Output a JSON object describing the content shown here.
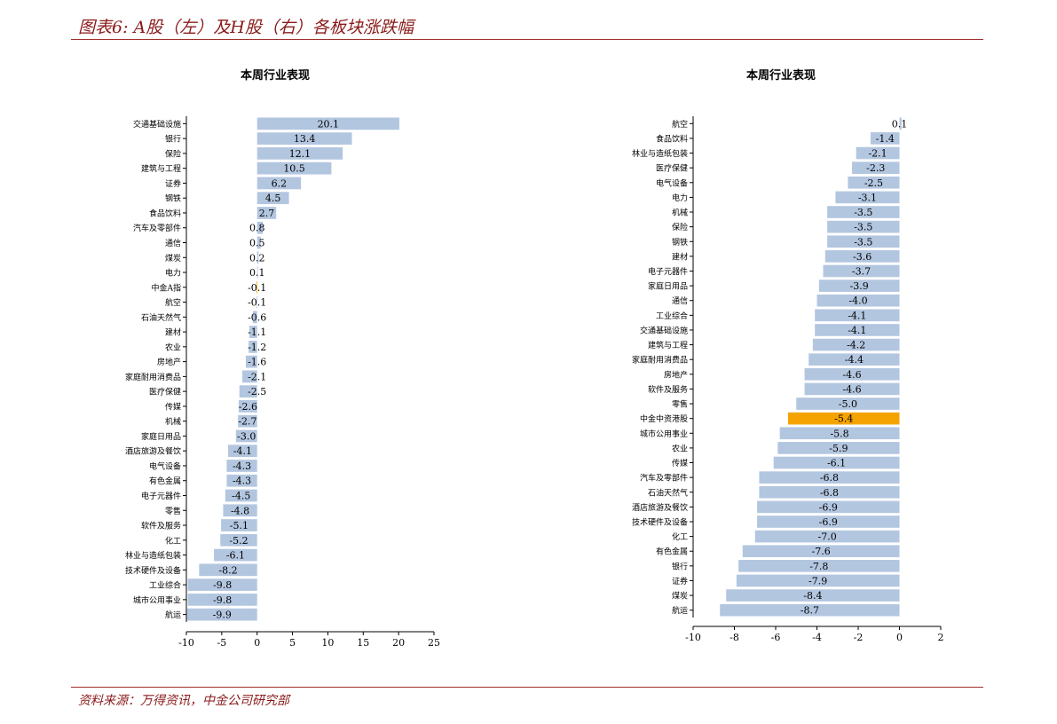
{
  "page": {
    "figure_title": "图表6: A股（左）及H股（右）各板块涨跌幅",
    "source": "资料来源：万得资讯，中金公司研究部"
  },
  "colors": {
    "bar": "#b3c6e0",
    "highlight": "#f5a300",
    "rule": "#a0302c",
    "title_text": "#8b1a1a"
  },
  "chart_data": [
    {
      "type": "bar",
      "orientation": "horizontal",
      "title": "本周行业表现",
      "xlim": [
        -10,
        25
      ],
      "xticks": [
        -10,
        -5,
        0,
        5,
        10,
        15,
        20,
        25
      ],
      "categories": [
        "交通基础设施",
        "银行",
        "保险",
        "建筑与工程",
        "证券",
        "钢铁",
        "食品饮料",
        "汽车及零部件",
        "通信",
        "煤炭",
        "电力",
        "中金A指",
        "航空",
        "石油天然气",
        "建材",
        "农业",
        "房地产",
        "家庭耐用消费品",
        "医疗保健",
        "传媒",
        "机械",
        "家庭日用品",
        "酒店旅游及餐饮",
        "电气设备",
        "有色金属",
        "电子元器件",
        "零售",
        "软件及服务",
        "化工",
        "林业与造纸包装",
        "技术硬件及设备",
        "工业综合",
        "城市公用事业",
        "航运"
      ],
      "values": [
        20.1,
        13.4,
        12.1,
        10.5,
        6.2,
        4.5,
        2.7,
        0.8,
        0.5,
        0.2,
        0.1,
        -0.1,
        -0.1,
        -0.6,
        -1.1,
        -1.2,
        -1.6,
        -2.1,
        -2.5,
        -2.6,
        -2.7,
        -3.0,
        -4.1,
        -4.3,
        -4.3,
        -4.5,
        -4.8,
        -5.1,
        -5.2,
        -6.1,
        -8.2,
        -9.8,
        -9.8,
        -9.9
      ],
      "labels": [
        "20.1",
        "13.4",
        "12.1",
        "10.5",
        "6.2",
        "4.5",
        "2.7",
        "0.8",
        "0.5",
        "0.2",
        "0.1",
        "-0.1",
        "-0.1",
        "-0.6",
        "-1.1",
        "-1.2",
        "-1.6",
        "-2.1",
        "-2.5",
        "-2.6",
        "-2.7",
        "-3.0",
        "-4.1",
        "-4.3",
        "-4.3",
        "-4.5",
        "-4.8",
        "-5.1",
        "-5.2",
        "-6.1",
        "-8.2",
        "-9.8",
        "-9.8",
        "-9.9"
      ],
      "highlight": [
        "中金A指"
      ]
    },
    {
      "type": "bar",
      "orientation": "horizontal",
      "title": "本周行业表现",
      "xlim": [
        -10,
        2
      ],
      "xticks": [
        -10,
        -8,
        -6,
        -4,
        -2,
        0,
        2
      ],
      "categories": [
        "航空",
        "食品饮料",
        "林业与造纸包装",
        "医疗保健",
        "电气设备",
        "电力",
        "机械",
        "保险",
        "钢铁",
        "建材",
        "电子元器件",
        "家庭日用品",
        "通信",
        "工业综合",
        "交通基础设施",
        "建筑与工程",
        "家庭耐用消费品",
        "房地产",
        "软件及服务",
        "零售",
        "中金中资港股",
        "城市公用事业",
        "农业",
        "传媒",
        "汽车及零部件",
        "石油天然气",
        "酒店旅游及餐饮",
        "技术硬件及设备",
        "化工",
        "有色金属",
        "银行",
        "证券",
        "煤炭",
        "航运"
      ],
      "values": [
        0.1,
        -1.4,
        -2.1,
        -2.3,
        -2.5,
        -3.1,
        -3.5,
        -3.5,
        -3.5,
        -3.6,
        -3.7,
        -3.9,
        -4.0,
        -4.1,
        -4.1,
        -4.2,
        -4.4,
        -4.6,
        -4.6,
        -5.0,
        -5.4,
        -5.8,
        -5.9,
        -6.1,
        -6.8,
        -6.8,
        -6.9,
        -6.9,
        -7.0,
        -7.6,
        -7.8,
        -7.9,
        -8.4,
        -8.7
      ],
      "labels": [
        "0.1",
        "-1.4",
        "-2.1",
        "-2.3",
        "-2.5",
        "-3.1",
        "-3.5",
        "-3.5",
        "-3.5",
        "-3.6",
        "-3.7",
        "-3.9",
        "-4.0",
        "-4.1",
        "-4.1",
        "-4.2",
        "-4.4",
        "-4.6",
        "-4.6",
        "-5.0",
        "-5.4",
        "-5.8",
        "-5.9",
        "-6.1",
        "-6.8",
        "-6.8",
        "-6.9",
        "-6.9",
        "-7.0",
        "-7.6",
        "-7.8",
        "-7.9",
        "-8.4",
        "-8.7"
      ],
      "highlight": [
        "中金中资港股"
      ]
    }
  ]
}
